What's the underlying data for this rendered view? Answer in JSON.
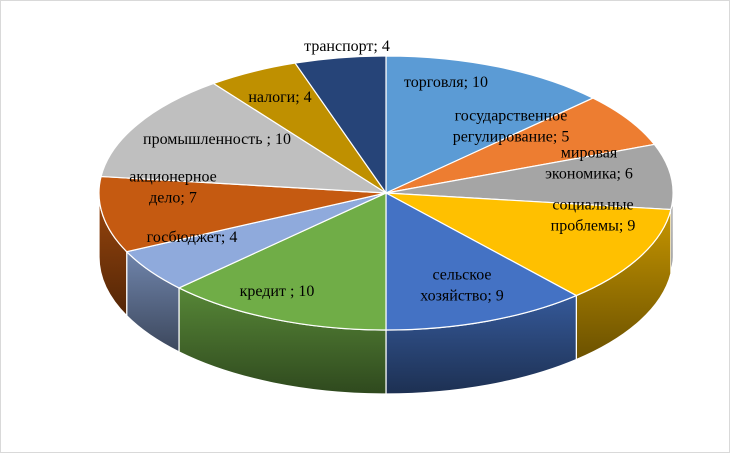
{
  "chart_data": {
    "type": "pie",
    "title": "",
    "style": "3d-exploded-none",
    "slices": [
      {
        "label": "торговля",
        "value": 10,
        "color": "#5b9bd5",
        "label_lines": [
          "торговля; 10"
        ]
      },
      {
        "label": "государственное регулирование",
        "value": 5,
        "color": "#ed7d31",
        "label_lines": [
          "государственное",
          "регулирование;  5"
        ]
      },
      {
        "label": "мировая экономика",
        "value": 6,
        "color": "#a5a5a5",
        "label_lines": [
          "мировая",
          "экономика; 6"
        ]
      },
      {
        "label": "социальные проблемы",
        "value": 9,
        "color": "#ffc000",
        "label_lines": [
          "социальные",
          "проблемы; 9"
        ]
      },
      {
        "label": "сельское хозяйство",
        "value": 9,
        "color": "#4472c4",
        "label_lines": [
          "сельское",
          "хозяйство; 9"
        ]
      },
      {
        "label": "кредит",
        "value": 10,
        "color": "#70ad47",
        "label_lines": [
          "кредит ; 10"
        ]
      },
      {
        "label": "госбюджет",
        "value": 4,
        "color": "#8faadc",
        "label_lines": [
          "госбюджет; 4"
        ]
      },
      {
        "label": "акционерное дело",
        "value": 7,
        "color": "#c55a11",
        "label_lines": [
          "акционерное",
          "дело; 7"
        ]
      },
      {
        "label": "промышленность",
        "value": 10,
        "color": "#bfbfbf",
        "label_lines": [
          "промышленность ; 10"
        ]
      },
      {
        "label": "налоги",
        "value": 4,
        "color": "#bf9000",
        "label_lines": [
          "налоги; 4"
        ]
      },
      {
        "label": "транспорт",
        "value": 4,
        "color": "#264478",
        "label_lines": [
          "транспорт; 4"
        ]
      }
    ]
  }
}
